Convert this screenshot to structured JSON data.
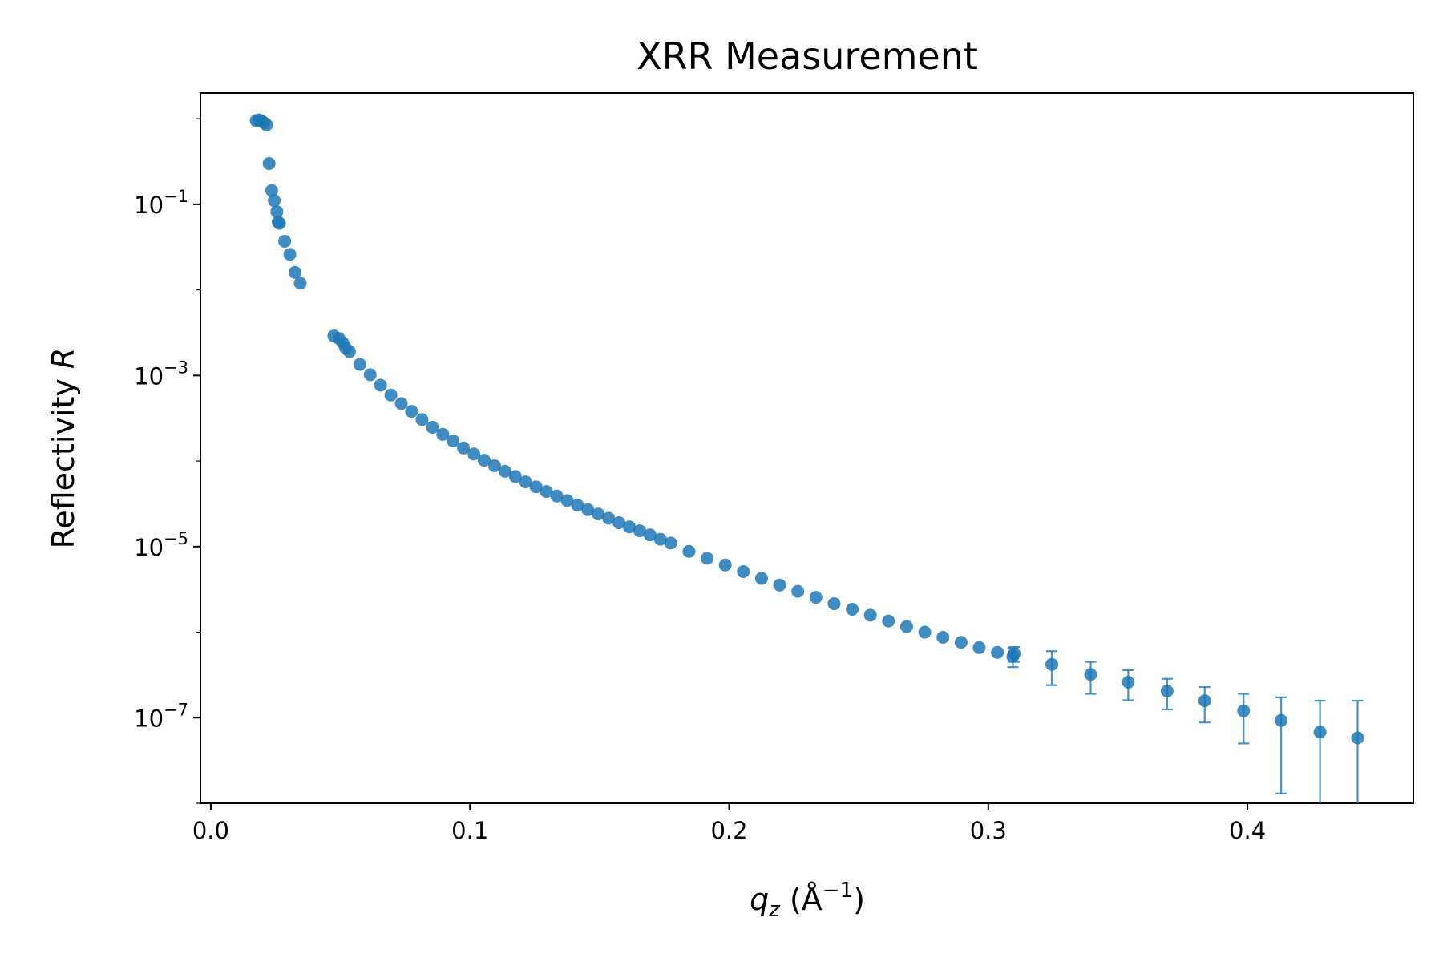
{
  "chart_data": {
    "type": "scatter",
    "title": "XRR Measurement",
    "xlabel": "q_z (Å^-1)",
    "ylabel": "Reflectivity R",
    "y_scale": "log",
    "xlim": [
      -0.004,
      0.464
    ],
    "ylim": [
      1e-08,
      2.0
    ],
    "x_ticks": [
      0.0,
      0.1,
      0.2,
      0.3,
      0.4
    ],
    "x_tick_labels": [
      "0.0",
      "0.1",
      "0.2",
      "0.3",
      "0.4"
    ],
    "y_ticks": [
      1e-07,
      1e-05,
      0.001,
      0.1
    ],
    "y_tick_labels": [
      {
        "base": "10",
        "exp": "−7"
      },
      {
        "base": "10",
        "exp": "−5"
      },
      {
        "base": "10",
        "exp": "−3"
      },
      {
        "base": "10",
        "exp": "−1"
      }
    ],
    "grid": false,
    "color": "#1f77b4",
    "series": [
      {
        "x": [
          0.0175,
          0.0185,
          0.0195,
          0.0205,
          0.0215,
          0.0225,
          0.0235,
          0.0245,
          0.0255,
          0.026,
          0.0265,
          0.0285,
          0.0305,
          0.0325,
          0.0345,
          0.0475,
          0.0495,
          0.051,
          0.052,
          0.0535,
          0.0575,
          0.0615,
          0.0655,
          0.0695,
          0.0735,
          0.0775,
          0.0815,
          0.0855,
          0.0895,
          0.0935,
          0.0975,
          0.1015,
          0.1055,
          0.1095,
          0.1135,
          0.1175,
          0.1215,
          0.1255,
          0.1295,
          0.1335,
          0.1375,
          0.1415,
          0.1455,
          0.1495,
          0.1535,
          0.1575,
          0.1615,
          0.1655,
          0.1695,
          0.1735,
          0.1775,
          0.1845,
          0.1915,
          0.1985,
          0.2055,
          0.2125,
          0.2195,
          0.2265,
          0.2335,
          0.2405,
          0.2475,
          0.2545,
          0.2615,
          0.2685,
          0.2755,
          0.2825,
          0.2895,
          0.2965,
          0.3035,
          0.3095,
          0.31,
          0.3245,
          0.3395,
          0.354,
          0.369,
          0.3835,
          0.3985,
          0.413,
          0.428,
          0.4425
        ],
        "y": [
          0.95,
          0.97,
          0.94,
          0.9,
          0.85,
          0.3,
          0.145,
          0.11,
          0.082,
          0.062,
          0.06,
          0.037,
          0.026,
          0.016,
          0.012,
          0.0029,
          0.0027,
          0.0024,
          0.0021,
          0.0019,
          0.00135,
          0.00102,
          0.00077,
          0.00059,
          0.00047,
          0.00038,
          0.000305,
          0.000248,
          0.000205,
          0.000172,
          0.000142,
          0.000121,
          0.000102,
          8.8e-05,
          7.6e-05,
          6.6e-05,
          5.7e-05,
          5e-05,
          4.4e-05,
          3.9e-05,
          3.45e-05,
          3.05e-05,
          2.7e-05,
          2.4e-05,
          2.15e-05,
          1.9e-05,
          1.7e-05,
          1.53e-05,
          1.37e-05,
          1.22e-05,
          1.1e-05,
          8.8e-06,
          7.3e-06,
          6.1e-06,
          5.1e-06,
          4.25e-06,
          3.55e-06,
          3e-06,
          2.55e-06,
          2.15e-06,
          1.85e-06,
          1.58e-06,
          1.35e-06,
          1.16e-06,
          1e-06,
          8.7e-07,
          7.6e-07,
          6.6e-07,
          5.8e-07,
          5.2e-07,
          5.6e-07,
          4.2e-07,
          3.2e-07,
          2.6e-07,
          2.05e-07,
          1.58e-07,
          1.2e-07,
          9.3e-08,
          6.8e-08,
          5.8e-08
        ],
        "yerr": [
          0,
          0,
          0,
          0,
          0,
          0,
          0,
          0,
          0,
          0,
          0,
          0,
          0,
          0,
          0,
          0,
          0,
          0,
          0,
          0,
          0,
          0,
          0,
          0,
          0,
          0,
          0,
          0,
          0,
          0,
          0,
          0,
          0,
          0,
          0,
          0,
          0,
          0,
          0,
          0,
          0,
          0,
          0,
          0,
          0,
          0,
          0,
          0,
          0,
          0,
          0,
          0,
          0,
          0,
          0,
          0,
          0,
          0,
          0,
          0,
          0,
          0,
          0,
          0,
          0,
          0,
          0,
          0,
          0,
          1.3e-07,
          1.1e-07,
          1.8e-07,
          1.3e-07,
          1e-07,
          8e-08,
          7e-08,
          7e-08,
          8e-08,
          9e-08,
          1e-07
        ]
      }
    ]
  }
}
